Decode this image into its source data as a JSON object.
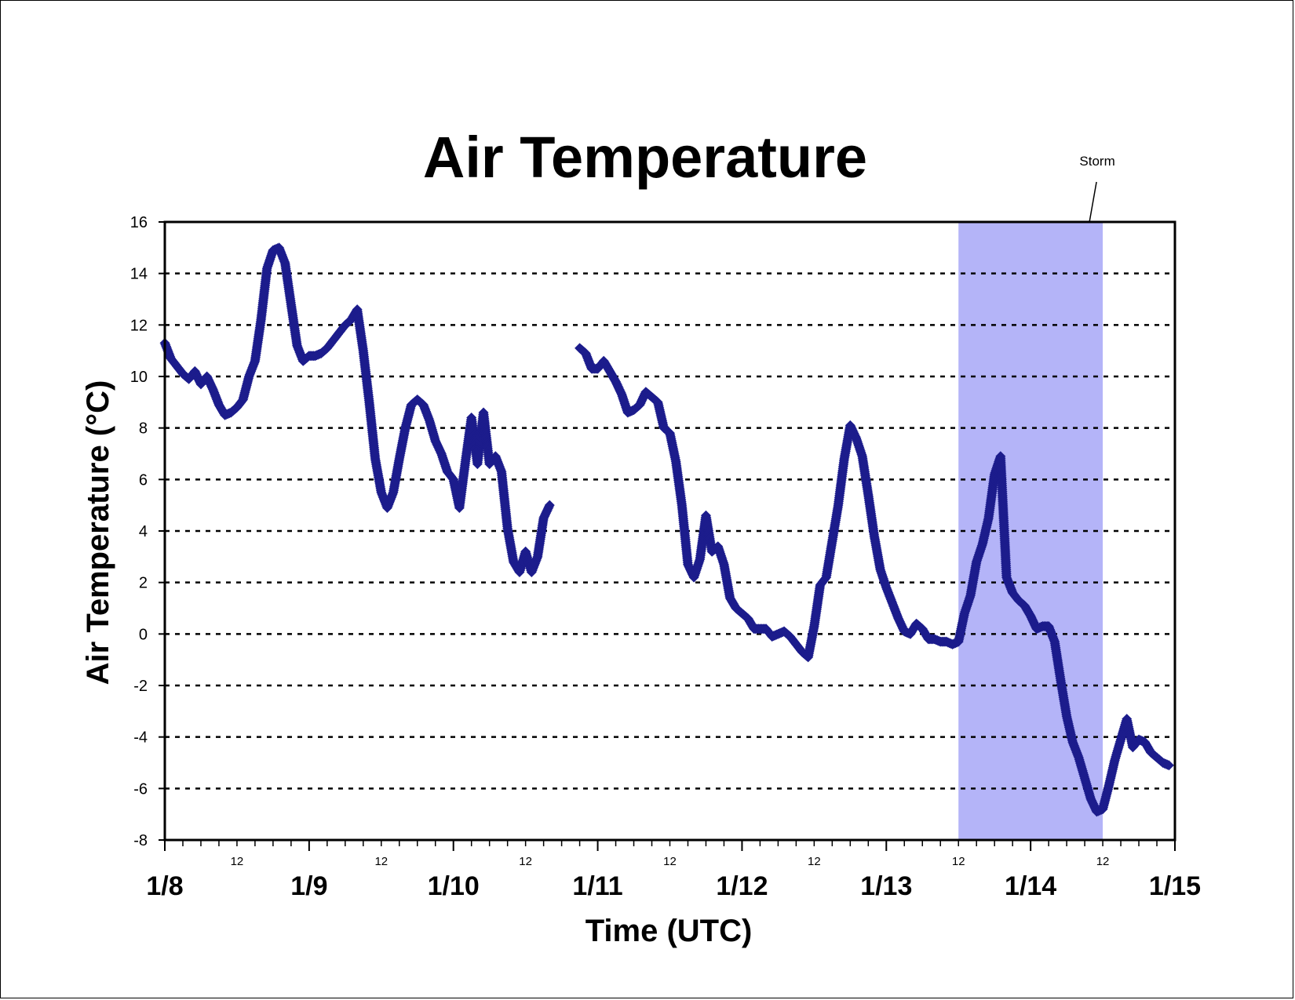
{
  "chart_data": {
    "type": "scatter",
    "title": "Air Temperature",
    "xlabel": "Time (UTC)",
    "ylabel": "Air Temperature (°C)",
    "ylim": [
      -8,
      16
    ],
    "yticks": [
      "16",
      "14",
      "12",
      "10",
      "8",
      "6",
      "4",
      "2",
      "0",
      "-2",
      "-4",
      "-6",
      "-8"
    ],
    "xlim": [
      "1/8 00:00",
      "1/15 00:00"
    ],
    "x_major_ticks": [
      "1/8",
      "1/9",
      "1/10",
      "1/11",
      "1/12",
      "1/13",
      "1/14",
      "1/15"
    ],
    "x_minor_label": "12",
    "grid": "horizontal dashed",
    "legend": "none",
    "marker_color": "#1c1c8c",
    "shade_color": "#b4b4f8",
    "annotation": {
      "text": "Storm",
      "span": [
        "1/13 12:00",
        "1/14 12:00"
      ]
    },
    "series": [
      {
        "segments": [
          [
            [
              "1/8 00:00",
              11.3
            ],
            [
              "1/8 01:00",
              10.7
            ],
            [
              "1/8 02:00",
              10.4
            ],
            [
              "1/8 03:00",
              10.1
            ],
            [
              "1/8 04:00",
              9.9
            ],
            [
              "1/8 05:00",
              10.2
            ],
            [
              "1/8 06:00",
              9.7
            ],
            [
              "1/8 07:00",
              10.0
            ],
            [
              "1/8 08:00",
              9.5
            ],
            [
              "1/8 09:00",
              8.9
            ],
            [
              "1/8 10:00",
              8.5
            ],
            [
              "1/8 11:00",
              8.6
            ],
            [
              "1/8 12:00",
              8.8
            ],
            [
              "1/8 13:00",
              9.1
            ],
            [
              "1/8 14:00",
              10.0
            ],
            [
              "1/8 15:00",
              10.6
            ],
            [
              "1/8 16:00",
              12.2
            ],
            [
              "1/8 17:00",
              14.2
            ],
            [
              "1/8 18:00",
              14.9
            ],
            [
              "1/8 19:00",
              15.0
            ],
            [
              "1/8 20:00",
              14.4
            ],
            [
              "1/8 21:00",
              12.8
            ],
            [
              "1/8 22:00",
              11.2
            ],
            [
              "1/8 23:00",
              10.6
            ],
            [
              "1/9 00:00",
              10.8
            ],
            [
              "1/9 01:00",
              10.8
            ],
            [
              "1/9 02:00",
              10.9
            ],
            [
              "1/9 03:00",
              11.1
            ],
            [
              "1/9 04:00",
              11.4
            ],
            [
              "1/9 05:00",
              11.7
            ],
            [
              "1/9 06:00",
              12.0
            ],
            [
              "1/9 07:00",
              12.2
            ],
            [
              "1/9 08:00",
              12.6
            ],
            [
              "1/9 09:00",
              11.0
            ],
            [
              "1/9 10:00",
              9.0
            ],
            [
              "1/9 11:00",
              6.8
            ],
            [
              "1/9 12:00",
              5.5
            ],
            [
              "1/9 13:00",
              4.9
            ],
            [
              "1/9 14:00",
              5.5
            ],
            [
              "1/9 15:00",
              6.8
            ],
            [
              "1/9 16:00",
              8.0
            ],
            [
              "1/9 17:00",
              8.9
            ],
            [
              "1/9 18:00",
              9.1
            ],
            [
              "1/9 19:00",
              8.9
            ],
            [
              "1/9 20:00",
              8.3
            ],
            [
              "1/9 21:00",
              7.5
            ],
            [
              "1/9 22:00",
              7.0
            ],
            [
              "1/9 23:00",
              6.3
            ],
            [
              "1/10 00:00",
              6.0
            ],
            [
              "1/10 01:00",
              4.9
            ],
            [
              "1/10 02:00",
              6.7
            ],
            [
              "1/10 03:00",
              8.4
            ],
            [
              "1/10 04:00",
              6.6
            ],
            [
              "1/10 05:00",
              8.6
            ],
            [
              "1/10 06:00",
              6.6
            ],
            [
              "1/10 07:00",
              6.9
            ],
            [
              "1/10 08:00",
              6.3
            ],
            [
              "1/10 09:00",
              4.1
            ],
            [
              "1/10 10:00",
              2.8
            ],
            [
              "1/10 11:00",
              2.4
            ],
            [
              "1/10 12:00",
              3.2
            ],
            [
              "1/10 13:00",
              2.4
            ],
            [
              "1/10 14:00",
              3.0
            ],
            [
              "1/10 15:00",
              4.5
            ],
            [
              "1/10 16:00",
              5.0
            ]
          ],
          [
            [
              "1/10 21:00",
              11.1
            ],
            [
              "1/10 22:00",
              10.9
            ],
            [
              "1/10 23:00",
              10.3
            ],
            [
              "1/11 00:00",
              10.3
            ],
            [
              "1/11 01:00",
              10.6
            ],
            [
              "1/11 02:00",
              10.2
            ],
            [
              "1/11 03:00",
              9.8
            ],
            [
              "1/11 04:00",
              9.3
            ],
            [
              "1/11 05:00",
              8.6
            ],
            [
              "1/11 06:00",
              8.7
            ],
            [
              "1/11 07:00",
              8.9
            ],
            [
              "1/11 08:00",
              9.4
            ],
            [
              "1/11 09:00",
              9.2
            ],
            [
              "1/11 10:00",
              9.0
            ],
            [
              "1/11 11:00",
              8.0
            ],
            [
              "1/11 12:00",
              7.8
            ],
            [
              "1/11 13:00",
              6.7
            ],
            [
              "1/11 14:00",
              5.0
            ],
            [
              "1/11 15:00",
              2.7
            ],
            [
              "1/11 16:00",
              2.2
            ],
            [
              "1/11 17:00",
              2.9
            ],
            [
              "1/11 18:00",
              4.6
            ],
            [
              "1/11 19:00",
              3.2
            ],
            [
              "1/11 20:00",
              3.4
            ],
            [
              "1/11 21:00",
              2.7
            ],
            [
              "1/11 22:00",
              1.4
            ],
            [
              "1/11 23:00",
              1.0
            ],
            [
              "1/12 00:00",
              0.8
            ],
            [
              "1/12 01:00",
              0.6
            ],
            [
              "1/12 02:00",
              0.2
            ],
            [
              "1/12 03:00",
              0.2
            ],
            [
              "1/12 04:00",
              0.2
            ],
            [
              "1/12 05:00",
              -0.1
            ],
            [
              "1/12 06:00",
              0.0
            ],
            [
              "1/12 07:00",
              0.1
            ],
            [
              "1/12 08:00",
              -0.1
            ],
            [
              "1/12 09:00",
              -0.4
            ],
            [
              "1/12 10:00",
              -0.7
            ],
            [
              "1/12 11:00",
              -0.9
            ],
            [
              "1/12 12:00",
              0.3
            ],
            [
              "1/12 13:00",
              1.9
            ],
            [
              "1/12 14:00",
              2.2
            ],
            [
              "1/12 15:00",
              3.6
            ],
            [
              "1/12 16:00",
              5.0
            ],
            [
              "1/12 17:00",
              6.8
            ],
            [
              "1/12 18:00",
              8.1
            ],
            [
              "1/12 19:00",
              7.6
            ],
            [
              "1/12 20:00",
              6.9
            ],
            [
              "1/12 21:00",
              5.4
            ],
            [
              "1/12 22:00",
              3.8
            ],
            [
              "1/12 23:00",
              2.5
            ],
            [
              "1/13 00:00",
              1.8
            ],
            [
              "1/13 01:00",
              1.2
            ],
            [
              "1/13 02:00",
              0.6
            ],
            [
              "1/13 03:00",
              0.1
            ],
            [
              "1/13 04:00",
              0.0
            ],
            [
              "1/13 05:00",
              0.4
            ],
            [
              "1/13 06:00",
              0.2
            ],
            [
              "1/13 07:00",
              -0.2
            ],
            [
              "1/13 08:00",
              -0.2
            ],
            [
              "1/13 09:00",
              -0.3
            ],
            [
              "1/13 10:00",
              -0.3
            ],
            [
              "1/13 11:00",
              -0.4
            ],
            [
              "1/13 12:00",
              -0.3
            ],
            [
              "1/13 13:00",
              0.8
            ],
            [
              "1/13 14:00",
              1.5
            ],
            [
              "1/13 15:00",
              2.8
            ],
            [
              "1/13 16:00",
              3.5
            ],
            [
              "1/13 17:00",
              4.5
            ],
            [
              "1/13 18:00",
              6.2
            ],
            [
              "1/13 19:00",
              6.9
            ],
            [
              "1/13 20:00",
              2.2
            ],
            [
              "1/13 21:00",
              1.6
            ],
            [
              "1/13 22:00",
              1.3
            ],
            [
              "1/13 23:00",
              1.1
            ],
            [
              "1/14 00:00",
              0.7
            ],
            [
              "1/14 01:00",
              0.2
            ],
            [
              "1/14 02:00",
              0.3
            ],
            [
              "1/14 03:00",
              0.3
            ],
            [
              "1/14 04:00",
              -0.3
            ],
            [
              "1/14 05:00",
              -1.8
            ],
            [
              "1/14 06:00",
              -3.2
            ],
            [
              "1/14 07:00",
              -4.2
            ],
            [
              "1/14 08:00",
              -4.8
            ],
            [
              "1/14 09:00",
              -5.6
            ],
            [
              "1/14 10:00",
              -6.4
            ],
            [
              "1/14 11:00",
              -6.9
            ],
            [
              "1/14 12:00",
              -6.8
            ],
            [
              "1/14 13:00",
              -5.9
            ],
            [
              "1/14 14:00",
              -4.9
            ],
            [
              "1/14 15:00",
              -4.1
            ],
            [
              "1/14 16:00",
              -3.3
            ],
            [
              "1/14 17:00",
              -4.4
            ],
            [
              "1/14 18:00",
              -4.1
            ],
            [
              "1/14 19:00",
              -4.2
            ],
            [
              "1/14 20:00",
              -4.6
            ],
            [
              "1/14 21:00",
              -4.8
            ],
            [
              "1/14 22:00",
              -5.0
            ],
            [
              "1/14 23:00",
              -5.1
            ]
          ]
        ]
      }
    ]
  }
}
